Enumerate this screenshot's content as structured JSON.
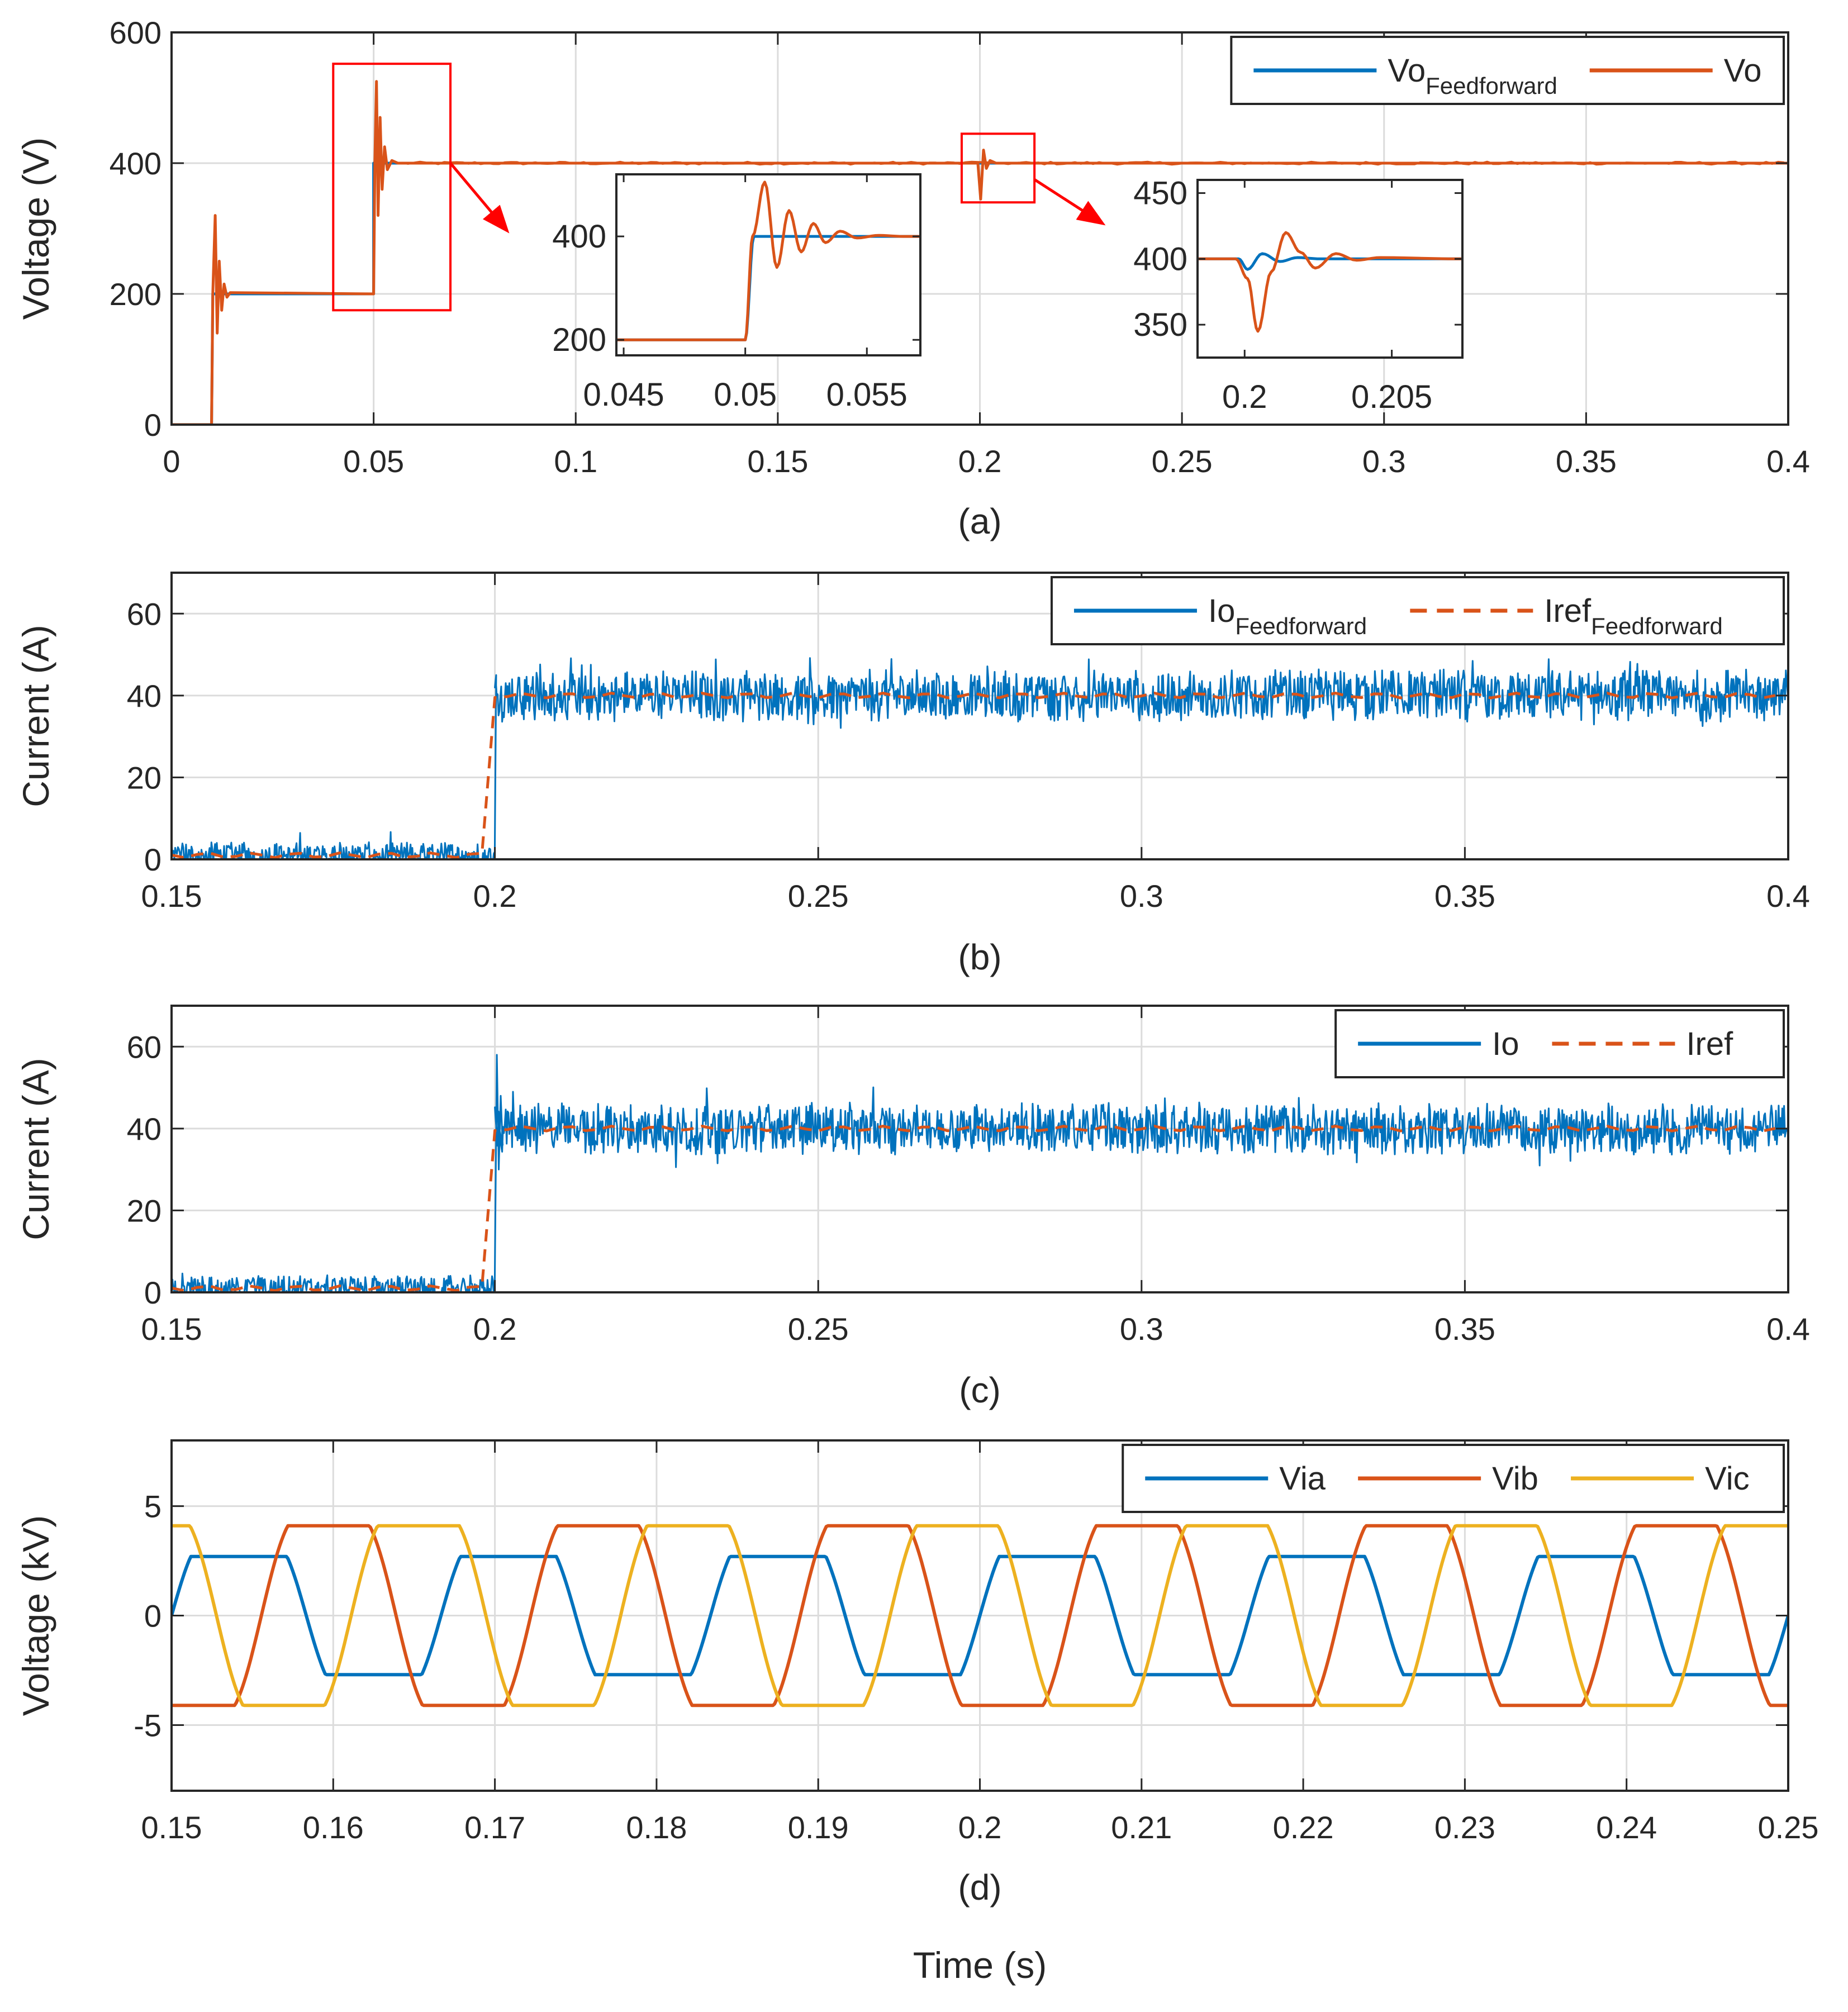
{
  "xlabel_global": "Time (s)",
  "colors": {
    "blue": "#0072bd",
    "orange": "#d95319",
    "yellow": "#edb120",
    "red": "#ff0000",
    "axis": "#262626",
    "grid": "#dcdcdc"
  },
  "chart_data": [
    {
      "id": "a",
      "type": "line",
      "caption": "(a)",
      "ylabel": "Voltage (V)",
      "xlabel": "",
      "xlim": [
        0,
        0.4
      ],
      "ylim": [
        0,
        600
      ],
      "xticks": [
        0,
        0.05,
        0.1,
        0.15,
        0.2,
        0.25,
        0.3,
        0.35,
        0.4
      ],
      "xtick_labels": [
        "0",
        "0.05",
        "0.1",
        "0.15",
        "0.2",
        "0.25",
        "0.3",
        "0.35",
        "0.4"
      ],
      "yticks": [
        0,
        200,
        400,
        600
      ],
      "ytick_labels": [
        "0",
        "200",
        "400",
        "600"
      ],
      "grid": true,
      "legend": {
        "position": "top-right",
        "entries": [
          {
            "label": "Vo",
            "sub": "Feedforward",
            "color": "blue",
            "dash": false
          },
          {
            "label": "Vo",
            "sub": "",
            "color": "orange",
            "dash": false
          }
        ]
      },
      "series": [
        {
          "name": "VoFeedforward",
          "color": "blue",
          "points": [
            [
              0,
              0
            ],
            [
              0.0099,
              0
            ],
            [
              0.0102,
              200
            ],
            [
              0.05,
              200
            ],
            [
              0.05,
              400
            ],
            [
              0.4,
              400
            ]
          ]
        },
        {
          "name": "Vo",
          "color": "orange",
          "points": [
            [
              0,
              0
            ],
            [
              0.0099,
              0
            ],
            [
              0.0102,
              200
            ],
            [
              0.0108,
              320
            ],
            [
              0.0113,
              140
            ],
            [
              0.0118,
              250
            ],
            [
              0.0124,
              175
            ],
            [
              0.013,
              215
            ],
            [
              0.0137,
              195
            ],
            [
              0.0145,
              202
            ],
            [
              0.05,
              200
            ],
            [
              0.0503,
              400
            ],
            [
              0.0507,
              525
            ],
            [
              0.0511,
              320
            ],
            [
              0.0516,
              470
            ],
            [
              0.0521,
              360
            ],
            [
              0.0527,
              425
            ],
            [
              0.0534,
              390
            ],
            [
              0.0545,
              404
            ],
            [
              0.056,
              400
            ],
            [
              0.1995,
              400
            ],
            [
              0.2002,
              345
            ],
            [
              0.2009,
              420
            ],
            [
              0.2016,
              392
            ],
            [
              0.2025,
              404
            ],
            [
              0.204,
              400
            ],
            [
              0.4,
              400
            ]
          ]
        }
      ],
      "zoom_boxes": [
        {
          "x": [
            0.04,
            0.069
          ],
          "y": [
            175,
            552
          ]
        },
        {
          "x": [
            0.1955,
            0.2135
          ],
          "y": [
            340,
            445
          ]
        }
      ],
      "insets": [
        {
          "xlim": [
            0.0447,
            0.0572
          ],
          "ylim": [
            170,
            520
          ],
          "xticks": [
            0.045,
            0.05,
            0.055
          ],
          "xtick_labels": [
            "0.045",
            "0.05",
            "0.055"
          ],
          "yticks": [
            200,
            400
          ],
          "ytick_labels": [
            "200",
            "400"
          ],
          "series": [
            {
              "name": "VoFeedforward",
              "color": "blue",
              "points": [
                [
                  0.0447,
                  200
                ],
                [
                  0.05,
                  200
                ],
                [
                  0.05035,
                  400
                ],
                [
                  0.0572,
                  400
                ]
              ]
            },
            {
              "name": "Vo",
              "color": "orange",
              "points": [
                [
                  0.0447,
                  200
                ],
                [
                  0.05,
                  200
                ],
                [
                  0.0503,
                  400
                ],
                [
                  0.0508,
                  505
                ],
                [
                  0.0513,
                  340
                ],
                [
                  0.0518,
                  450
                ],
                [
                  0.0523,
                  370
                ],
                [
                  0.0528,
                  425
                ],
                [
                  0.0533,
                  388
                ],
                [
                  0.0539,
                  410
                ],
                [
                  0.0546,
                  397
                ],
                [
                  0.0555,
                  402
                ],
                [
                  0.0565,
                  400
                ],
                [
                  0.0572,
                  400
                ]
              ]
            }
          ]
        },
        {
          "xlim": [
            0.1984,
            0.2074
          ],
          "ylim": [
            325,
            460
          ],
          "xticks": [
            0.2,
            0.205
          ],
          "xtick_labels": [
            "0.2",
            "0.205"
          ],
          "yticks": [
            350,
            400,
            450
          ],
          "ytick_labels": [
            "350",
            "400",
            "450"
          ],
          "series": [
            {
              "name": "VoFeedforward",
              "color": "blue",
              "points": [
                [
                  0.1984,
                  400
                ],
                [
                  0.1998,
                  400
                ],
                [
                  0.2001,
                  392
                ],
                [
                  0.2006,
                  404
                ],
                [
                  0.2012,
                  398
                ],
                [
                  0.2018,
                  401
                ],
                [
                  0.2026,
                  400
                ],
                [
                  0.2074,
                  400
                ]
              ]
            },
            {
              "name": "Vo",
              "color": "orange",
              "points": [
                [
                  0.1984,
                  400
                ],
                [
                  0.1997,
                  400
                ],
                [
                  0.2001,
                  385
                ],
                [
                  0.20045,
                  345
                ],
                [
                  0.2009,
                  390
                ],
                [
                  0.2014,
                  420
                ],
                [
                  0.2019,
                  405
                ],
                [
                  0.2024,
                  393
                ],
                [
                  0.2031,
                  404
                ],
                [
                  0.2038,
                  399
                ],
                [
                  0.2046,
                  401
                ],
                [
                  0.2074,
                  400
                ]
              ]
            }
          ]
        }
      ]
    },
    {
      "id": "b",
      "type": "line",
      "caption": "(b)",
      "ylabel": "Current (A)",
      "xlabel": "",
      "xlim": [
        0.15,
        0.4
      ],
      "ylim": [
        0,
        70
      ],
      "xticks": [
        0.15,
        0.2,
        0.25,
        0.3,
        0.35,
        0.4
      ],
      "xtick_labels": [
        "0.15",
        "0.2",
        "0.25",
        "0.3",
        "0.35",
        "0.4"
      ],
      "yticks": [
        0,
        20,
        40,
        60
      ],
      "ytick_labels": [
        "0",
        "20",
        "40",
        "60"
      ],
      "grid": true,
      "legend": {
        "position": "top-right",
        "entries": [
          {
            "label": "Io",
            "sub": "Feedforward",
            "color": "blue",
            "dash": false
          },
          {
            "label": "Iref",
            "sub": "Feedforward",
            "color": "orange",
            "dash": true
          }
        ]
      },
      "series": [
        {
          "name": "IoFeedforward",
          "color": "blue",
          "noise_band": true,
          "levels": [
            [
              0.15,
              0.2,
              1,
              4
            ],
            [
              0.2,
              0.4,
              40,
              8
            ]
          ],
          "overshoot": 0
        },
        {
          "name": "IrefFeedforward",
          "color": "orange",
          "dash": true,
          "levels": [
            [
              0.15,
              0.2,
              1,
              0
            ],
            [
              0.2,
              0.4,
              40,
              0
            ]
          ]
        }
      ]
    },
    {
      "id": "c",
      "type": "line",
      "caption": "(c)",
      "ylabel": "Current (A)",
      "xlabel": "",
      "xlim": [
        0.15,
        0.4
      ],
      "ylim": [
        0,
        70
      ],
      "xticks": [
        0.15,
        0.2,
        0.25,
        0.3,
        0.35,
        0.4
      ],
      "xtick_labels": [
        "0.15",
        "0.2",
        "0.25",
        "0.3",
        "0.35",
        "0.4"
      ],
      "yticks": [
        0,
        20,
        40,
        60
      ],
      "ytick_labels": [
        "0",
        "20",
        "40",
        "60"
      ],
      "grid": true,
      "legend": {
        "position": "top-right",
        "entries": [
          {
            "label": "Io",
            "sub": "",
            "color": "blue",
            "dash": false
          },
          {
            "label": "Iref",
            "sub": "",
            "color": "orange",
            "dash": true
          }
        ]
      },
      "series": [
        {
          "name": "Io",
          "color": "blue",
          "noise_band": true,
          "levels": [
            [
              0.15,
              0.2,
              1,
              4
            ],
            [
              0.2,
              0.4,
              40,
              8
            ]
          ],
          "overshoot": 58
        },
        {
          "name": "Iref",
          "color": "orange",
          "dash": true,
          "levels": [
            [
              0.15,
              0.2,
              1,
              0
            ],
            [
              0.2,
              0.4,
              40,
              0
            ]
          ]
        }
      ]
    },
    {
      "id": "d",
      "type": "line",
      "caption": "(d)",
      "ylabel": "Voltage (kV)",
      "xlabel": "Time (s)",
      "xlim": [
        0.15,
        0.25
      ],
      "ylim": [
        -8,
        8
      ],
      "xticks": [
        0.15,
        0.16,
        0.17,
        0.18,
        0.19,
        0.2,
        0.21,
        0.22,
        0.23,
        0.24,
        0.25
      ],
      "xtick_labels": [
        "0.15",
        "0.16",
        "0.17",
        "0.18",
        "0.19",
        "0.2",
        "0.21",
        "0.22",
        "0.23",
        "0.24",
        "0.25"
      ],
      "yticks": [
        -5,
        0,
        5
      ],
      "ytick_labels": [
        "-5",
        "0",
        "5"
      ],
      "grid": true,
      "legend": {
        "position": "top-right",
        "entries": [
          {
            "label": "Via",
            "sub": "",
            "color": "blue",
            "dash": false
          },
          {
            "label": "Vib",
            "sub": "",
            "color": "orange",
            "dash": false
          },
          {
            "label": "Vic",
            "sub": "",
            "color": "yellow",
            "dash": false
          }
        ]
      },
      "frequency_hz": 60,
      "series": [
        {
          "name": "Via",
          "color": "blue",
          "amplitude_kv": 4.2,
          "clip_high_kv": 2.7,
          "clip_low_kv": -2.7,
          "phase_deg": 0
        },
        {
          "name": "Vib",
          "color": "orange",
          "amplitude_kv": 5.6,
          "clip_high_kv": 4.1,
          "clip_low_kv": -4.1,
          "phase_deg": -120
        },
        {
          "name": "Vic",
          "color": "yellow",
          "amplitude_kv": 5.6,
          "clip_high_kv": 4.1,
          "clip_low_kv": -4.1,
          "phase_deg": 120
        }
      ]
    }
  ]
}
